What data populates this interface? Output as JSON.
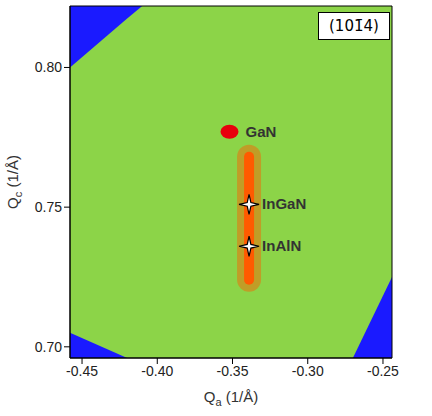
{
  "chart_data": {
    "type": "scatter",
    "title": "(101̄4)",
    "x_label": "Qa  (1/Å)",
    "y_label": "Qc  (1/Å)",
    "xlim": [
      -0.458,
      -0.244
    ],
    "ylim": [
      0.696,
      0.822
    ],
    "xticks": [
      -0.45,
      {
        "value": -0.4,
        "label": "-0.40"
      },
      -0.35,
      {
        "value": -0.3,
        "label": "-0.30"
      },
      -0.25
    ],
    "yticks": [
      {
        "value": 0.7,
        "label": "0.70"
      },
      0.75,
      {
        "value": 0.8,
        "label": "0.80"
      }
    ],
    "scan_area": {
      "color": "#8cd448",
      "x": [
        -0.458,
        -0.42,
        -0.41,
        -0.27,
        -0.244
      ],
      "low": [
        0.705,
        0.696,
        0.696,
        0.696,
        0.725
      ],
      "high": [
        0.8,
        0.8175,
        0.822,
        0.822,
        0.822
      ]
    },
    "streak": {
      "x": -0.339,
      "y": [
        0.724,
        0.768
      ],
      "color": "#ff5a00"
    },
    "series": [
      {
        "name": "GaN",
        "color": "#e8000c",
        "marker": "circle",
        "values": [
          {
            "x": -0.352,
            "y": 0.777
          }
        ]
      },
      {
        "name": "InGaN",
        "color": "#ffffff",
        "marker": "star",
        "values": [
          {
            "x": -0.339,
            "y": 0.751
          }
        ]
      },
      {
        "name": "InAlN",
        "color": "#ffffff",
        "marker": "star",
        "values": [
          {
            "x": -0.339,
            "y": 0.736
          }
        ]
      }
    ]
  }
}
